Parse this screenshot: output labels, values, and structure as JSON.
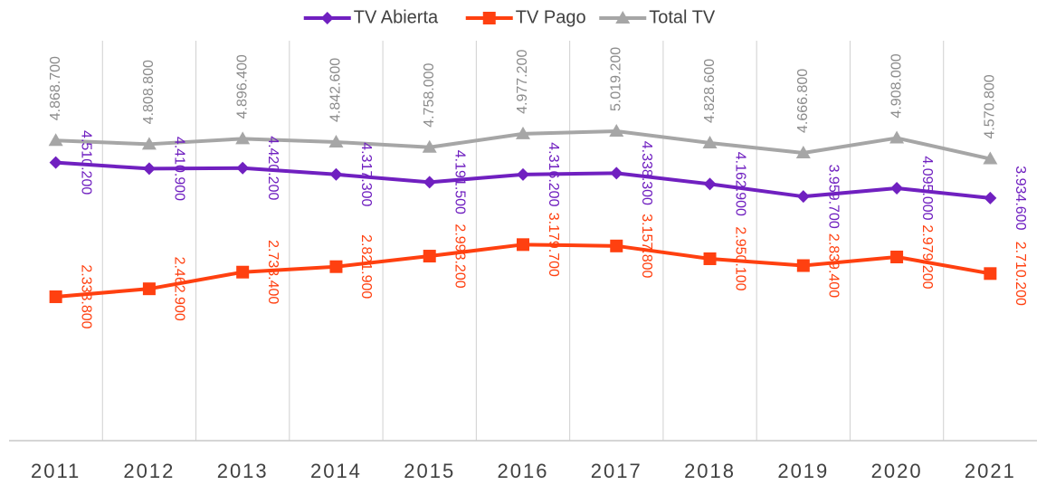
{
  "chart_data": {
    "type": "line",
    "categories": [
      "2011",
      "2012",
      "2013",
      "2014",
      "2015",
      "2016",
      "2017",
      "2018",
      "2019",
      "2020",
      "2021"
    ],
    "series": [
      {
        "name": "TV Abierta",
        "color": "#7020c0",
        "marker": "diamond",
        "values": [
          4510200,
          4410900,
          4420200,
          4317300,
          4191500,
          4316200,
          4338300,
          4162900,
          3959700,
          4095000,
          3934600
        ],
        "value_labels": [
          "4.510.200",
          "4.410.900",
          "4.420.200",
          "4.317.300",
          "4.191.500",
          "4.316.200",
          "4.338.300",
          "4.162.900",
          "3.959.700",
          "4.095.000",
          "3.934.600"
        ]
      },
      {
        "name": "TV Pago",
        "color": "#ff4010",
        "marker": "square",
        "values": [
          2333800,
          2462900,
          2733400,
          2821900,
          2993200,
          3179700,
          3157800,
          2950100,
          2839400,
          2979200,
          2710200
        ],
        "value_labels": [
          "2.333.800",
          "2.462.900",
          "2.733.400",
          "2.821.900",
          "2.993.200",
          "3.179.700",
          "3.157.800",
          "2.950.100",
          "2.839.400",
          "2.979.200",
          "2.710.200"
        ]
      },
      {
        "name": "Total TV",
        "color": "#a6a6a6",
        "marker": "triangle",
        "values": [
          4868700,
          4808800,
          4896400,
          4842600,
          4758000,
          4977200,
          5019200,
          4828600,
          4666800,
          4908000,
          4570800
        ],
        "value_labels": [
          "4.868.700",
          "4.808.800",
          "4.896.400",
          "4.842.600",
          "4.758.000",
          "4.977.200",
          "5.019.200",
          "4.828.600",
          "4.666.800",
          "4.908.000",
          "4.570.800"
        ]
      }
    ],
    "ylim": [
      0,
      7000000
    ],
    "legend": "top"
  }
}
